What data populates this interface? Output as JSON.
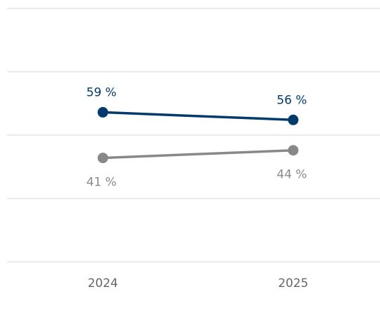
{
  "chart_data": {
    "type": "line",
    "categories": [
      "2024",
      "2025"
    ],
    "series": [
      {
        "values": [
          59,
          56
        ],
        "labels": [
          "59 %",
          "56 %"
        ],
        "color": "#003b6b"
      },
      {
        "values": [
          41,
          44
        ],
        "labels": [
          "41 %",
          "44 %"
        ],
        "color": "#888888"
      }
    ],
    "ylim": [
      0,
      100
    ],
    "grid": true,
    "gridline_color": "#e3e3e3",
    "tick_label_color": "#666666",
    "legend": "none"
  }
}
